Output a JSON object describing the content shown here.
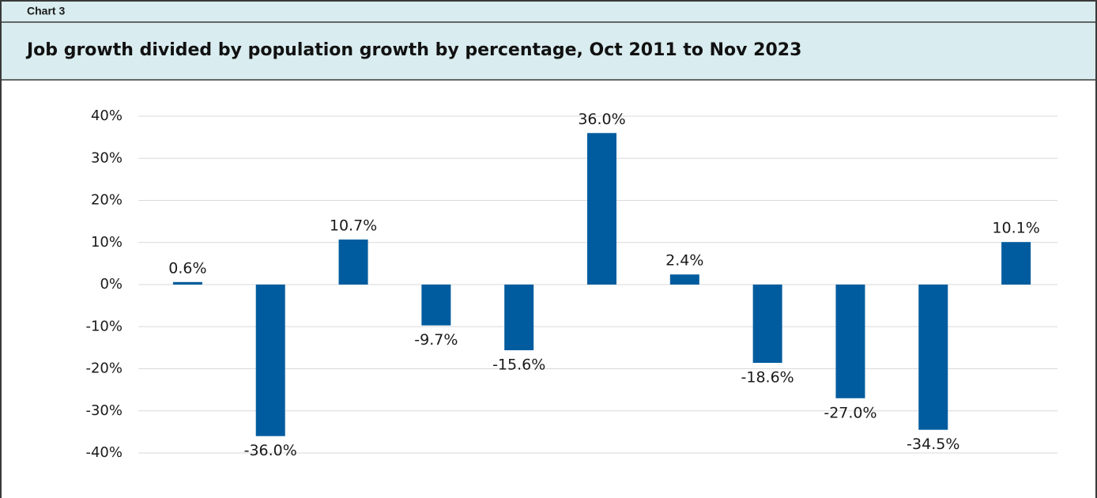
{
  "label": "Chart 3",
  "chart_data": {
    "type": "bar",
    "title": "Job growth divided by population growth by percentage, Oct 2011 to Nov 2023",
    "values": [
      0.6,
      -36.0,
      10.7,
      -9.7,
      -15.6,
      36.0,
      2.4,
      -18.6,
      -27.0,
      -34.5,
      10.1
    ],
    "value_labels": [
      "0.6%",
      "-36.0%",
      "10.7%",
      "-9.7%",
      "-15.6%",
      "36.0%",
      "2.4%",
      "-18.6%",
      "-27.0%",
      "-34.5%",
      "10.1%"
    ],
    "color": "#005c9e",
    "ylim": [
      -40,
      40
    ],
    "yticks": [
      {
        "value": -40,
        "label": "-40%"
      },
      {
        "value": -30,
        "label": "-30%"
      },
      {
        "value": -20,
        "label": "-20%"
      },
      {
        "value": -10,
        "label": "-10%"
      },
      {
        "value": 0,
        "label": "0%"
      },
      {
        "value": 10,
        "label": "10%"
      },
      {
        "value": 20,
        "label": "20%"
      },
      {
        "value": 30,
        "label": "30%"
      },
      {
        "value": 40,
        "label": "40%"
      }
    ],
    "grid": true
  }
}
